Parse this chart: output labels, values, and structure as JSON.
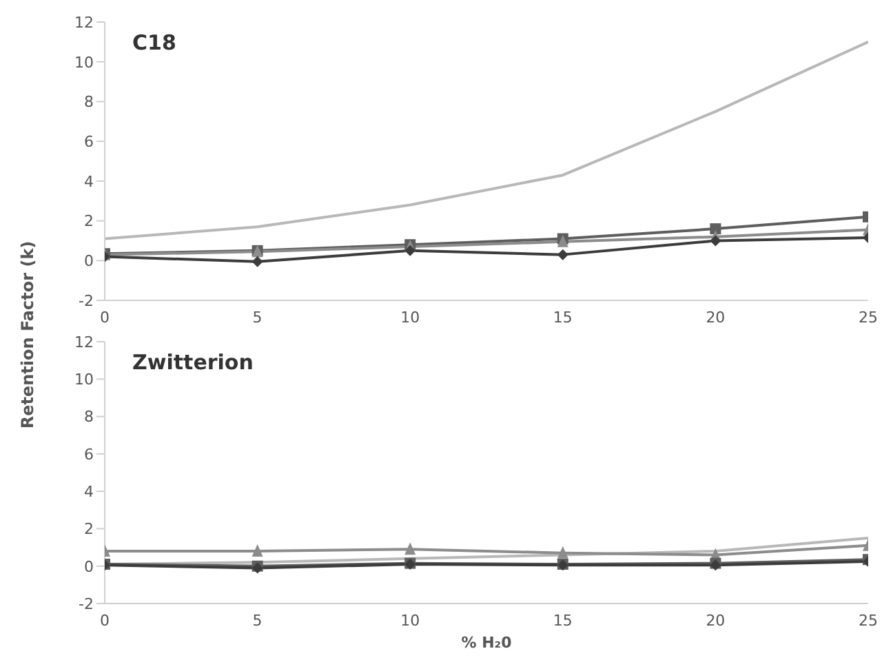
{
  "chart_data": [
    {
      "type": "line",
      "title": "C18",
      "ylabel": "Retention Factor (k)",
      "x": [
        0,
        5,
        10,
        15,
        20,
        25
      ],
      "xlim": [
        0,
        25
      ],
      "xticks": [
        0,
        5,
        10,
        15,
        20,
        25
      ],
      "ylim": [
        -2,
        12
      ],
      "yticks": [
        -2,
        0,
        2,
        4,
        6,
        8,
        10,
        12
      ],
      "grid": false,
      "legend": false,
      "series": [
        {
          "color": "#b8b8b8",
          "marker": "none",
          "values": [
            1.1,
            1.7,
            2.8,
            4.3,
            7.5,
            11.0
          ]
        },
        {
          "color": "#5e5e5e",
          "marker": "square",
          "values": [
            0.35,
            0.5,
            0.8,
            1.1,
            1.6,
            2.2
          ]
        },
        {
          "color": "#8c8c8c",
          "marker": "triangle",
          "values": [
            0.3,
            0.45,
            0.7,
            0.95,
            1.2,
            1.55
          ]
        },
        {
          "color": "#3c3c3c",
          "marker": "diamond",
          "values": [
            0.2,
            -0.05,
            0.5,
            0.3,
            1.0,
            1.15
          ]
        }
      ]
    },
    {
      "type": "line",
      "title": "Zwitterion",
      "xlabel": "% H₂0",
      "x": [
        0,
        5,
        10,
        15,
        20,
        25
      ],
      "xlim": [
        0,
        25
      ],
      "xticks": [
        0,
        5,
        10,
        15,
        20,
        25
      ],
      "ylim": [
        -2,
        12
      ],
      "yticks": [
        -2,
        0,
        2,
        4,
        6,
        8,
        10,
        12
      ],
      "grid": false,
      "legend": false,
      "series": [
        {
          "color": "#b8b8b8",
          "marker": "none",
          "values": [
            0.1,
            0.2,
            0.4,
            0.6,
            0.8,
            1.5
          ]
        },
        {
          "color": "#8c8c8c",
          "marker": "triangle",
          "values": [
            0.8,
            0.8,
            0.9,
            0.7,
            0.6,
            1.1
          ]
        },
        {
          "color": "#5e5e5e",
          "marker": "square",
          "values": [
            0.1,
            0.0,
            0.15,
            0.1,
            0.15,
            0.35
          ]
        },
        {
          "color": "#3c3c3c",
          "marker": "diamond",
          "values": [
            0.05,
            -0.1,
            0.1,
            0.05,
            0.05,
            0.25
          ]
        }
      ]
    }
  ]
}
